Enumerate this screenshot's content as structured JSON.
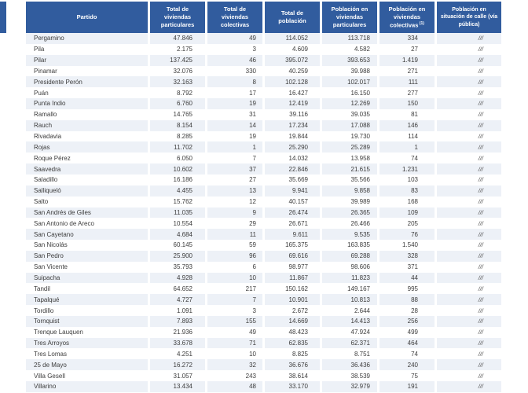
{
  "colors": {
    "header_bg": "#315C9E",
    "header_text": "#FFFFFF",
    "stripe_bg": "#EDF1F7",
    "row_bg": "#FFFFFF",
    "body_text": "#3C3C3C"
  },
  "table": {
    "columns": [
      {
        "label": "Partido"
      },
      {
        "label": "Total de viviendas particulares"
      },
      {
        "label": "Total de viviendas colectivas"
      },
      {
        "label": "Total de población"
      },
      {
        "label": "Población en viviendas particulares"
      },
      {
        "label": "Población en viviendas colectivas",
        "footnote": "(1)"
      },
      {
        "label": "Población en situación de calle (vía pública)"
      }
    ],
    "rows": [
      [
        "Pergamino",
        "47.846",
        "49",
        "114.052",
        "113.718",
        "334",
        "///"
      ],
      [
        "Pila",
        "2.175",
        "3",
        "4.609",
        "4.582",
        "27",
        "///"
      ],
      [
        "Pilar",
        "137.425",
        "46",
        "395.072",
        "393.653",
        "1.419",
        "///"
      ],
      [
        "Pinamar",
        "32.076",
        "330",
        "40.259",
        "39.988",
        "271",
        "///"
      ],
      [
        "Presidente Perón",
        "32.163",
        "8",
        "102.128",
        "102.017",
        "111",
        "///"
      ],
      [
        "Puán",
        "8.792",
        "17",
        "16.427",
        "16.150",
        "277",
        "///"
      ],
      [
        "Punta Indio",
        "6.760",
        "19",
        "12.419",
        "12.269",
        "150",
        "///"
      ],
      [
        "Ramallo",
        "14.765",
        "31",
        "39.116",
        "39.035",
        "81",
        "///"
      ],
      [
        "Rauch",
        "8.154",
        "14",
        "17.234",
        "17.088",
        "146",
        "///"
      ],
      [
        "Rivadavia",
        "8.285",
        "19",
        "19.844",
        "19.730",
        "114",
        "///"
      ],
      [
        "Rojas",
        "11.702",
        "1",
        "25.290",
        "25.289",
        "1",
        "///"
      ],
      [
        "Roque Pérez",
        "6.050",
        "7",
        "14.032",
        "13.958",
        "74",
        "///"
      ],
      [
        "Saavedra",
        "10.602",
        "37",
        "22.846",
        "21.615",
        "1.231",
        "///"
      ],
      [
        "Saladillo",
        "16.186",
        "27",
        "35.669",
        "35.566",
        "103",
        "///"
      ],
      [
        "Salliqueló",
        "4.455",
        "13",
        "9.941",
        "9.858",
        "83",
        "///"
      ],
      [
        "Salto",
        "15.762",
        "12",
        "40.157",
        "39.989",
        "168",
        "///"
      ],
      [
        "San Andrés de Giles",
        "11.035",
        "9",
        "26.474",
        "26.365",
        "109",
        "///"
      ],
      [
        "San Antonio de Areco",
        "10.554",
        "29",
        "26.671",
        "26.466",
        "205",
        "///"
      ],
      [
        "San Cayetano",
        "4.684",
        "11",
        "9.611",
        "9.535",
        "76",
        "///"
      ],
      [
        "San Nicolás",
        "60.145",
        "59",
        "165.375",
        "163.835",
        "1.540",
        "///"
      ],
      [
        "San Pedro",
        "25.900",
        "96",
        "69.616",
        "69.288",
        "328",
        "///"
      ],
      [
        "San Vicente",
        "35.793",
        "6",
        "98.977",
        "98.606",
        "371",
        "///"
      ],
      [
        "Suipacha",
        "4.928",
        "10",
        "11.867",
        "11.823",
        "44",
        "///"
      ],
      [
        "Tandil",
        "64.652",
        "217",
        "150.162",
        "149.167",
        "995",
        "///"
      ],
      [
        "Tapalqué",
        "4.727",
        "7",
        "10.901",
        "10.813",
        "88",
        "///"
      ],
      [
        "Tordillo",
        "1.091",
        "3",
        "2.672",
        "2.644",
        "28",
        "///"
      ],
      [
        "Tornquist",
        "7.893",
        "155",
        "14.669",
        "14.413",
        "256",
        "///"
      ],
      [
        "Trenque Lauquen",
        "21.936",
        "49",
        "48.423",
        "47.924",
        "499",
        "///"
      ],
      [
        "Tres Arroyos",
        "33.678",
        "71",
        "62.835",
        "62.371",
        "464",
        "///"
      ],
      [
        "Tres Lomas",
        "4.251",
        "10",
        "8.825",
        "8.751",
        "74",
        "///"
      ],
      [
        "25 de Mayo",
        "16.272",
        "32",
        "36.676",
        "36.436",
        "240",
        "///"
      ],
      [
        "Villa Gesell",
        "31.057",
        "243",
        "38.614",
        "38.539",
        "75",
        "///"
      ],
      [
        "Villarino",
        "13.434",
        "48",
        "33.170",
        "32.979",
        "191",
        "///"
      ]
    ]
  }
}
